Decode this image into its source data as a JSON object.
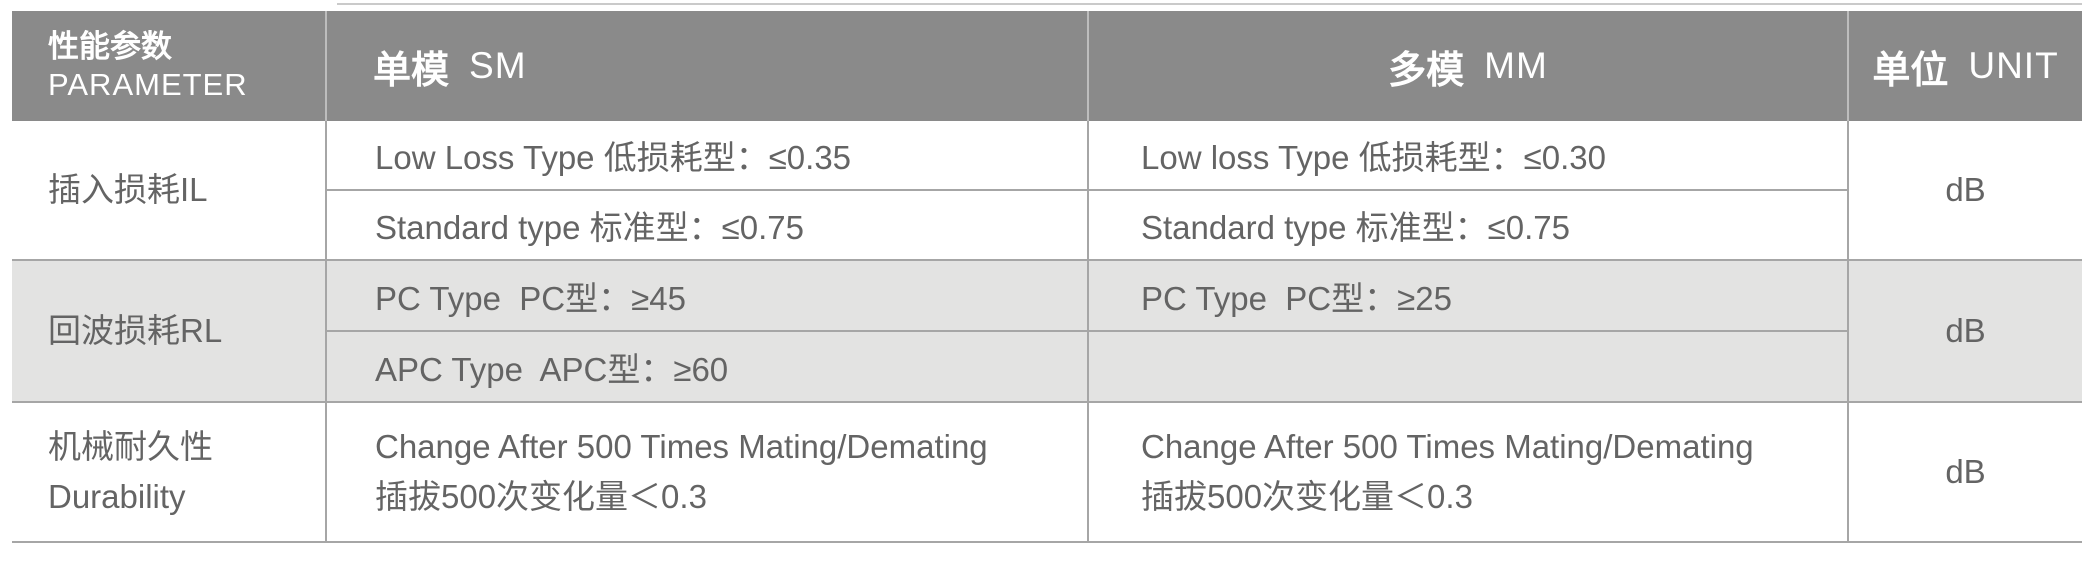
{
  "colors": {
    "header_bg": "#8a8a8a",
    "header_text": "#ffffff",
    "alt_row_bg": "#e3e3e2",
    "grid_line": "#a6a6a6",
    "body_text": "#646464"
  },
  "header": {
    "param_zh": "性能参数",
    "param_en": "PARAMETER",
    "sm_zh": "单模",
    "sm_en": "SM",
    "mm_zh": "多模",
    "mm_en": "MM",
    "unit_zh": "单位",
    "unit_en": "UNIT"
  },
  "rows": {
    "il": {
      "label": "插入损耗IL",
      "sm1": "Low Loss Type 低损耗型：≤0.35",
      "sm2": "Standard type 标准型：≤0.75",
      "mm1": "Low loss Type 低损耗型：≤0.30",
      "mm2": "Standard type 标准型：≤0.75",
      "unit": "dB"
    },
    "rl": {
      "label": "回波损耗RL",
      "sm1": "PC Type  PC型：≥45",
      "sm2": "APC Type  APC型：≥60",
      "mm1": "PC Type  PC型：≥25",
      "mm2": "",
      "unit": "dB"
    },
    "durability": {
      "label_zh": "机械耐久性",
      "label_en": "Durability",
      "sm1": "Change After 500 Times Mating/Demating",
      "sm2": "插拔500次变化量＜0.3",
      "mm1": "Change After 500 Times Mating/Demating",
      "mm2": "插拔500次变化量＜0.3",
      "unit": "dB"
    }
  }
}
